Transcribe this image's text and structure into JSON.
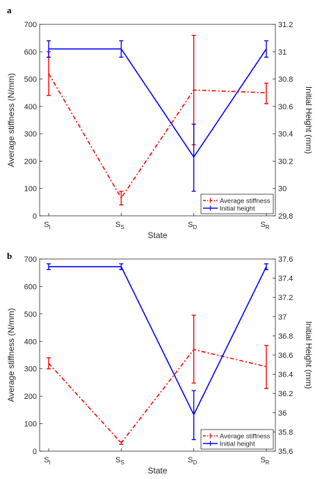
{
  "chart_data": [
    {
      "panel_label": "a",
      "type": "line",
      "categories": [
        {
          "main": "S",
          "sub": "I"
        },
        {
          "main": "S",
          "sub": "S"
        },
        {
          "main": "S",
          "sub": "D"
        },
        {
          "main": "S",
          "sub": "R"
        }
      ],
      "xlabel": "State",
      "ylabel_left": "Average stiffness (N/mm)",
      "ylabel_right": "Initial Height (mm)",
      "ylim_left": [
        0,
        700
      ],
      "yticks_left": [
        "0",
        "100",
        "200",
        "300",
        "400",
        "500",
        "600",
        "700"
      ],
      "ylim_right": [
        29.8,
        31.2
      ],
      "yticks_right": [
        "29.8",
        "30",
        "30.2",
        "30.4",
        "30.6",
        "30.8",
        "31",
        "31.2"
      ],
      "legend_position": "bottom-right",
      "series": [
        {
          "name": "Average stiffness",
          "axis": "left",
          "color": "#ff0000",
          "style": "dash-dot",
          "values": [
            520,
            65,
            460,
            450
          ],
          "err_low": [
            440,
            40,
            260,
            410
          ],
          "err_high": [
            600,
            90,
            660,
            485
          ]
        },
        {
          "name": "Initial height",
          "axis": "right",
          "color": "#0000ff",
          "style": "solid",
          "values": [
            31.02,
            31.02,
            30.23,
            31.02
          ],
          "err_low": [
            30.96,
            30.96,
            29.98,
            30.96
          ],
          "err_high": [
            31.08,
            31.08,
            30.47,
            31.08
          ]
        }
      ]
    },
    {
      "panel_label": "b",
      "type": "line",
      "categories": [
        {
          "main": "S",
          "sub": "I"
        },
        {
          "main": "S",
          "sub": "S"
        },
        {
          "main": "S",
          "sub": "D"
        },
        {
          "main": "S",
          "sub": "R"
        }
      ],
      "xlabel": "State",
      "ylabel_left": "Average stiffness (N/mm)",
      "ylabel_right": "Initial Height (mm)",
      "ylim_left": [
        0,
        700
      ],
      "yticks_left": [
        "0",
        "100",
        "200",
        "300",
        "400",
        "500",
        "600",
        "700"
      ],
      "ylim_right": [
        35.6,
        37.6
      ],
      "yticks_right": [
        "35.6",
        "35.8",
        "36",
        "36.2",
        "36.4",
        "36.6",
        "36.8",
        "37",
        "37.2",
        "37.4",
        "37.6"
      ],
      "legend_position": "bottom-right",
      "series": [
        {
          "name": "Average stiffness",
          "axis": "left",
          "color": "#ff0000",
          "style": "dash-dot",
          "values": [
            320,
            30,
            370,
            308
          ],
          "err_low": [
            300,
            25,
            248,
            228
          ],
          "err_high": [
            340,
            35,
            495,
            385
          ]
        },
        {
          "name": "Initial height",
          "axis": "right",
          "color": "#0000ff",
          "style": "solid",
          "values": [
            37.52,
            37.52,
            35.98,
            37.52
          ],
          "err_low": [
            37.49,
            37.49,
            35.72,
            37.49
          ],
          "err_high": [
            37.55,
            37.55,
            36.23,
            37.55
          ]
        }
      ]
    }
  ]
}
